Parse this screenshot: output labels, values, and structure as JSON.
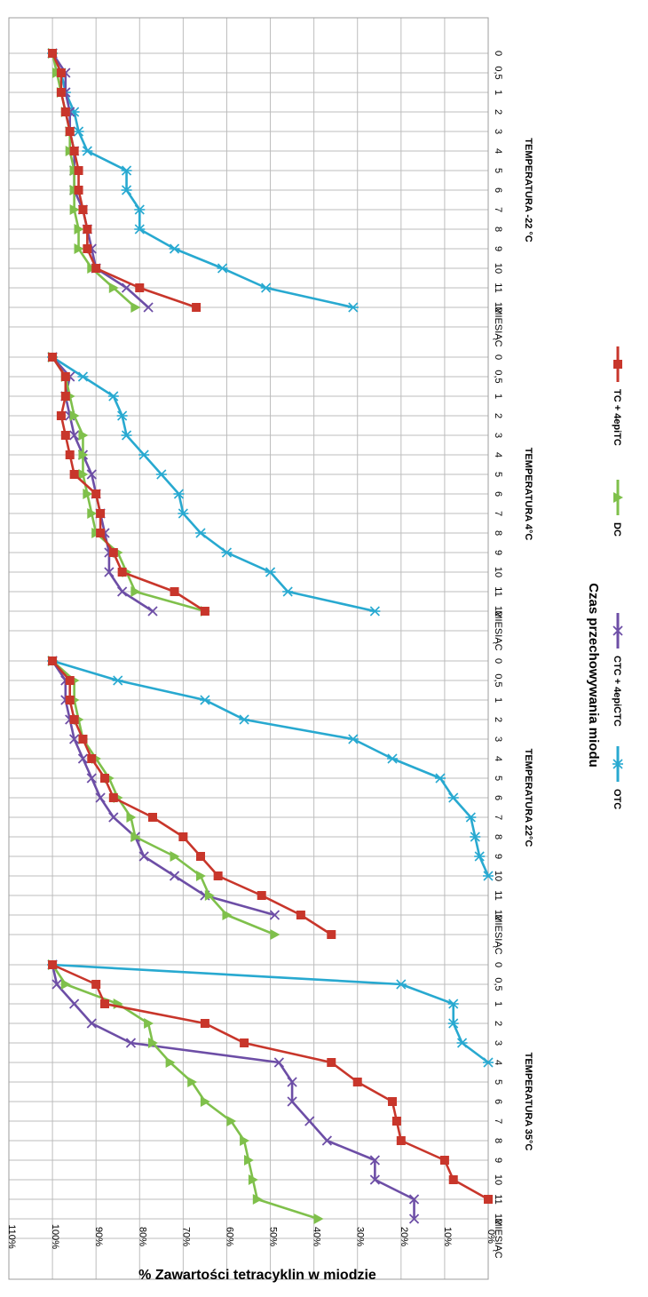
{
  "chart_data": {
    "type": "line",
    "ylabel": "% Zawartości tetracyklin w miodzie",
    "xlabel": "Czas przechowywania miodu",
    "y_ticks": [
      "0%",
      "10%",
      "20%",
      "30%",
      "40%",
      "50%",
      "60%",
      "70%",
      "80%",
      "90%",
      "100%",
      "110%"
    ],
    "ylim": [
      0,
      110
    ],
    "x_categories": [
      "0",
      "0,5",
      "1",
      "2",
      "3",
      "4",
      "5",
      "6",
      "7",
      "8",
      "9",
      "10",
      "11",
      "12",
      "MIESIĄC"
    ],
    "grid": true,
    "legend_position": "bottom",
    "colors": {
      "OTC": "#28a9d0",
      "CTC + 4epiCTC": "#6d4ea6",
      "DC": "#7fc04b",
      "TC + 4epiTC": "#c8362b"
    },
    "panels": [
      {
        "title": "TEMPERATURA -22 °C",
        "series": [
          {
            "name": "OTC",
            "values": [
              100,
              98,
              97,
              95,
              94,
              92,
              83,
              83,
              80,
              80,
              72,
              61,
              51,
              31
            ]
          },
          {
            "name": "CTC + 4epiCTC",
            "values": [
              100,
              97,
              97,
              96,
              96,
              95,
              95,
              95,
              93,
              92,
              91,
              90,
              83,
              78
            ]
          },
          {
            "name": "DC",
            "values": [
              100,
              99,
              98,
              97,
              96,
              96,
              95,
              95,
              95,
              94,
              94,
              91,
              86,
              81
            ]
          },
          {
            "name": "TC + 4epiTC",
            "values": [
              100,
              98,
              98,
              97,
              96,
              95,
              94,
              94,
              93,
              92,
              92,
              90,
              80,
              67
            ]
          }
        ]
      },
      {
        "title": "TEMPERATURA 4°C",
        "series": [
          {
            "name": "OTC",
            "values": [
              100,
              93,
              86,
              84,
              83,
              79,
              75,
              71,
              70,
              66,
              60,
              50,
              46,
              26
            ]
          },
          {
            "name": "CTC + 4epiCTC",
            "values": [
              100,
              96,
              97,
              96,
              95,
              93,
              91,
              90,
              89,
              88,
              87,
              87,
              84,
              77
            ]
          },
          {
            "name": "DC",
            "values": [
              100,
              97,
              96,
              95,
              93,
              93,
              93,
              92,
              91,
              90,
              85,
              83,
              81,
              65
            ]
          },
          {
            "name": "TC + 4epiTC",
            "values": [
              100,
              97,
              97,
              98,
              97,
              96,
              95,
              90,
              89,
              89,
              86,
              84,
              72,
              65
            ]
          }
        ]
      },
      {
        "title": "TEMPERATURA 22°C",
        "series": [
          {
            "name": "OTC",
            "values": [
              100,
              85,
              65,
              56,
              31,
              22,
              11,
              8,
              4,
              3,
              2,
              0
            ]
          },
          {
            "name": "CTC + 4epiCTC",
            "values": [
              100,
              97,
              97,
              96,
              95,
              93,
              91,
              89,
              86,
              81,
              79,
              72,
              65,
              49
            ]
          },
          {
            "name": "DC",
            "values": [
              100,
              95,
              95,
              94,
              93,
              90,
              87,
              85,
              82,
              81,
              72,
              66,
              64,
              60,
              49
            ]
          },
          {
            "name": "TC + 4epiTC",
            "values": [
              100,
              96,
              96,
              95,
              93,
              91,
              88,
              86,
              77,
              70,
              66,
              62,
              52,
              43,
              36
            ]
          }
        ]
      },
      {
        "title": "TEMPERATURA 35°C",
        "series": [
          {
            "name": "OTC",
            "values": [
              100,
              20,
              8,
              8,
              6,
              0
            ]
          },
          {
            "name": "CTC + 4epiCTC",
            "values": [
              100,
              99,
              95,
              91,
              82,
              48,
              45,
              45,
              41,
              37,
              26,
              26,
              17,
              17
            ]
          },
          {
            "name": "DC",
            "values": [
              100,
              97,
              85,
              78,
              77,
              73,
              68,
              65,
              59,
              56,
              55,
              54,
              53,
              39
            ]
          },
          {
            "name": "TC + 4epiTC",
            "values": [
              100,
              90,
              88,
              65,
              56,
              36,
              30,
              22,
              21,
              20,
              10,
              8,
              0
            ]
          }
        ]
      }
    ]
  }
}
